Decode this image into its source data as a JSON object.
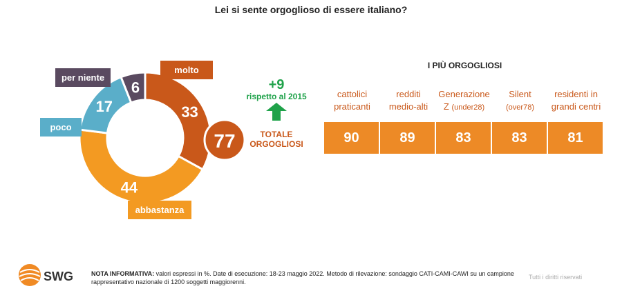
{
  "title": "Lei si sente orgoglioso di essere italiano?",
  "chart_data": [
    {
      "type": "pie",
      "slices": [
        {
          "label": "molto",
          "value": 33,
          "color": "#c9581a"
        },
        {
          "label": "abbastanza",
          "value": 44,
          "color": "#f39a22"
        },
        {
          "label": "poco",
          "value": 17,
          "color": "#5aaec9"
        },
        {
          "label": "per niente",
          "value": 6,
          "color": "#5a4a60"
        }
      ],
      "total": {
        "value": "77",
        "label": "TOTALE ORGOGLIOSI"
      },
      "change": {
        "value": "+9",
        "label": "rispetto al 2015"
      }
    },
    {
      "type": "table",
      "title": "I PIÙ ORGOGLIOSI",
      "columns": [
        {
          "label_main": "cattolici praticanti",
          "label_small": "",
          "value": 90
        },
        {
          "label_main": "redditi medio-alti",
          "label_small": "",
          "value": 89
        },
        {
          "label_main": "Generazione Z",
          "label_small": "(under28)",
          "value": 83
        },
        {
          "label_main": "Silent",
          "label_small": "(over78)",
          "value": 83
        },
        {
          "label_main": "residenti in grandi centri",
          "label_small": "",
          "value": 81
        }
      ]
    }
  ],
  "footer": {
    "logo": "SWG",
    "note_label": "NOTA INFORMATIVA:",
    "note_text": " valori espressi in %. Date di esecuzione: 18-23 maggio 2022. Metodo di rilevazione: sondaggio CATI-CAMI-CAWI su un campione rappresentativo nazionale di 1200 soggetti maggiorenni.",
    "rights": "Tutti i diritti riservati"
  }
}
